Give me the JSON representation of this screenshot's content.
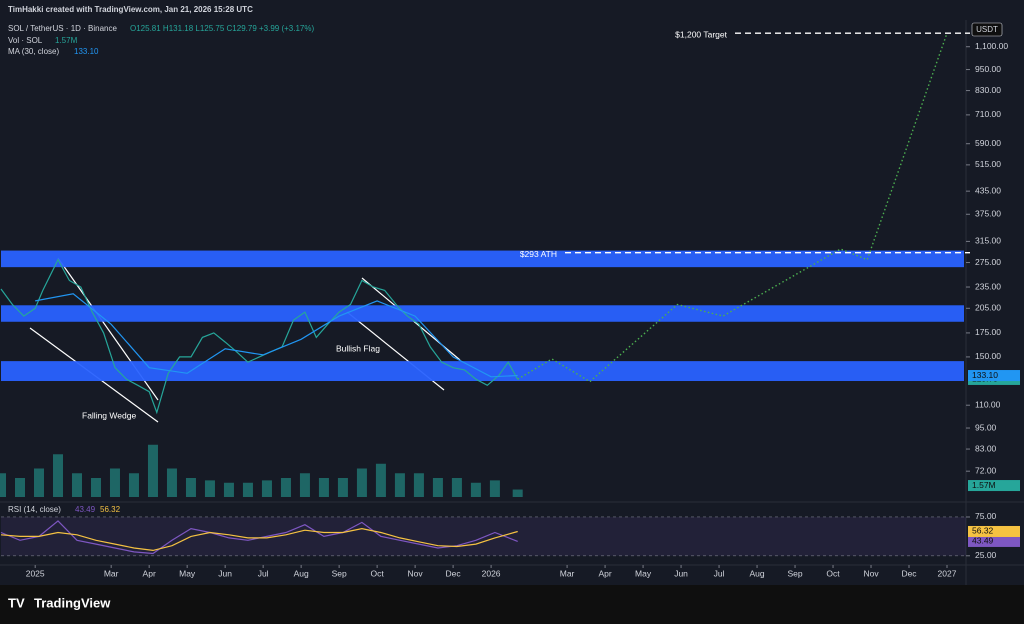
{
  "credit": "TimHakki created with TradingView.com, Jan 21, 2026 15:28 UTC",
  "brand": "TradingView",
  "currency": "USDT",
  "chart_data": [
    {
      "type": "line",
      "title": "SOL / TetherUS · 1D · Binance",
      "ohlc": "O125.81 H131.18 L125.75 C129.79 +3.99 (+3.17%)",
      "log_scale": true,
      "xlim": [
        -0.9,
        24.5
      ],
      "ylim": [
        61,
        1306
      ],
      "yticks": [
        {
          "value": 1100,
          "label": "1,100.00"
        },
        {
          "value": 950,
          "label": "950.00"
        },
        {
          "value": 830,
          "label": "830.00"
        },
        {
          "value": 710,
          "label": "710.00"
        },
        {
          "value": 590,
          "label": "590.00"
        },
        {
          "value": 515,
          "label": "515.00"
        },
        {
          "value": 435,
          "label": "435.00"
        },
        {
          "value": 375,
          "label": "375.00"
        },
        {
          "value": 315,
          "label": "315.00"
        },
        {
          "value": 275,
          "label": "275.00"
        },
        {
          "value": 235,
          "label": "235.00"
        },
        {
          "value": 205,
          "label": "205.00"
        },
        {
          "value": 175,
          "label": "175.00"
        },
        {
          "value": 150,
          "label": "150.00"
        },
        {
          "value": 110,
          "label": "110.00"
        },
        {
          "value": 95,
          "label": "95.00"
        },
        {
          "value": 83,
          "label": "83.00"
        },
        {
          "value": 72,
          "label": "72.00"
        }
      ],
      "series": [
        {
          "color": "#26a69a",
          "x": [
            -0.9,
            -0.6,
            -0.3,
            0,
            0.2,
            0.6,
            0.9,
            1.2,
            1.5,
            1.8,
            2.1,
            2.4,
            2.7,
            3.0,
            3.2,
            3.5,
            3.8,
            4.1,
            4.4,
            4.7,
            5.0,
            5.3,
            5.6,
            5.9,
            6.2,
            6.5,
            6.8,
            7.1,
            7.4,
            7.7,
            8.0,
            8.3,
            8.6,
            8.9,
            9.2,
            9.5,
            9.8,
            10.1,
            10.4,
            10.7,
            11.0,
            11.3,
            11.6,
            11.9,
            12.2,
            12.45,
            12.7
          ],
          "values": [
            232,
            210,
            195,
            205,
            230,
            280,
            245,
            235,
            200,
            175,
            140,
            130,
            125,
            120,
            105,
            135,
            150,
            150,
            170,
            175,
            165,
            155,
            145,
            150,
            155,
            160,
            190,
            200,
            170,
            185,
            200,
            210,
            245,
            235,
            230,
            210,
            195,
            185,
            160,
            145,
            140,
            138,
            130,
            125,
            133,
            145,
            129.79
          ]
        },
        {
          "name": "MA (30, close)",
          "color": "#2196f3",
          "x": [
            0,
            1,
            2,
            3,
            4,
            5,
            6,
            7,
            8,
            9,
            10,
            11,
            12,
            12.7
          ],
          "values": [
            215,
            225,
            185,
            140,
            135,
            158,
            152,
            168,
            195,
            215,
            195,
            150,
            132,
            133.1
          ],
          "value_labels": [
            null,
            null,
            null,
            null,
            null,
            null,
            null,
            null,
            null,
            null,
            null,
            null,
            null,
            "133.10"
          ]
        },
        {
          "color": "#4caf50",
          "dashed": true,
          "x": [
            12.7,
            13.6,
            14.6,
            16.9,
            18.1,
            21.2,
            21.9,
            24.0
          ],
          "values": [
            130,
            148,
            128,
            210,
            195,
            300,
            280,
            1200
          ]
        }
      ],
      "zones": [
        {
          "low": 267,
          "high": 297,
          "color": "#2962ff"
        },
        {
          "low": 188,
          "high": 209,
          "color": "#2962ff"
        },
        {
          "low": 128.5,
          "high": 146,
          "color": "#2962ff"
        }
      ],
      "hlines": [
        {
          "value": 293,
          "label": "$293 ATH"
        },
        {
          "value": 1200,
          "label": "$1,200 Target"
        }
      ],
      "annotations": [
        "Falling Wedge",
        "Bullish Flag"
      ]
    },
    {
      "type": "bar",
      "xlim": [
        -0.9,
        24.5
      ],
      "ylim": [
        0,
        12
      ],
      "series": [
        {
          "name": "Vol · SOL",
          "color": "#26a69a",
          "x": [
            -0.9,
            -0.4,
            0.1,
            0.6,
            1.1,
            1.6,
            2.1,
            2.6,
            3.1,
            3.6,
            4.1,
            4.6,
            5.1,
            5.6,
            6.1,
            6.6,
            7.1,
            7.6,
            8.1,
            8.6,
            9.1,
            9.6,
            10.1,
            10.6,
            11.1,
            11.6,
            12.1,
            12.7
          ],
          "values": [
            5,
            4,
            6,
            9,
            5,
            4,
            6,
            5,
            11,
            6,
            4,
            3.5,
            3,
            3,
            3.5,
            4,
            5,
            4,
            4,
            6,
            7,
            5,
            5,
            4,
            4,
            3,
            3.5,
            1.57
          ],
          "value_labels": [
            null,
            null,
            null,
            null,
            null,
            null,
            null,
            null,
            null,
            null,
            null,
            null,
            null,
            null,
            null,
            null,
            null,
            null,
            null,
            null,
            null,
            null,
            null,
            null,
            null,
            null,
            null,
            "1.57M"
          ]
        }
      ]
    },
    {
      "type": "line",
      "xlim": [
        -0.9,
        24.5
      ],
      "ylim": [
        17,
        84
      ],
      "yticks": [
        {
          "value": 75,
          "label": "75.00"
        },
        {
          "value": 25,
          "label": "25.00"
        }
      ],
      "xticks": [
        {
          "value": 0,
          "label": "2025"
        },
        {
          "value": 2,
          "label": "Mar"
        },
        {
          "value": 3,
          "label": "Apr"
        },
        {
          "value": 4,
          "label": "May"
        },
        {
          "value": 5,
          "label": "Jun"
        },
        {
          "value": 6,
          "label": "Jul"
        },
        {
          "value": 7,
          "label": "Aug"
        },
        {
          "value": 8,
          "label": "Sep"
        },
        {
          "value": 9,
          "label": "Oct"
        },
        {
          "value": 10,
          "label": "Nov"
        },
        {
          "value": 11,
          "label": "Dec"
        },
        {
          "value": 12,
          "label": "2026"
        },
        {
          "value": 14,
          "label": "Mar"
        },
        {
          "value": 15,
          "label": "Apr"
        },
        {
          "value": 16,
          "label": "May"
        },
        {
          "value": 17,
          "label": "Jun"
        },
        {
          "value": 18,
          "label": "Jul"
        },
        {
          "value": 19,
          "label": "Aug"
        },
        {
          "value": 20,
          "label": "Sep"
        },
        {
          "value": 21,
          "label": "Oct"
        },
        {
          "value": 22,
          "label": "Nov"
        },
        {
          "value": 23,
          "label": "Dec"
        },
        {
          "value": 24,
          "label": "2027"
        }
      ],
      "title": "RSI (14, close)",
      "series": [
        {
          "color": "#7e57c2",
          "x": [
            -0.9,
            -0.4,
            0.1,
            0.6,
            1.1,
            1.6,
            2.1,
            2.6,
            3.1,
            3.6,
            4.1,
            4.6,
            5.1,
            5.6,
            6.1,
            6.6,
            7.1,
            7.6,
            8.1,
            8.6,
            9.1,
            9.6,
            10.1,
            10.6,
            11.1,
            11.6,
            12.1,
            12.7
          ],
          "values": [
            55,
            45,
            50,
            70,
            45,
            40,
            35,
            30,
            28,
            45,
            60,
            55,
            48,
            45,
            50,
            55,
            65,
            50,
            55,
            68,
            50,
            45,
            40,
            35,
            38,
            45,
            55,
            43.49
          ]
        },
        {
          "color": "#f5c242",
          "x": [
            -0.9,
            -0.4,
            0.1,
            0.6,
            1.1,
            1.6,
            2.1,
            2.6,
            3.1,
            3.6,
            4.1,
            4.6,
            5.1,
            5.6,
            6.1,
            6.6,
            7.1,
            7.6,
            8.1,
            8.6,
            9.1,
            9.6,
            10.1,
            10.6,
            11.1,
            11.6,
            12.1,
            12.7
          ],
          "values": [
            52,
            50,
            50,
            55,
            52,
            45,
            40,
            35,
            32,
            38,
            50,
            55,
            52,
            48,
            48,
            52,
            58,
            55,
            55,
            60,
            55,
            48,
            43,
            38,
            37,
            40,
            48,
            56.32
          ]
        }
      ]
    }
  ]
}
